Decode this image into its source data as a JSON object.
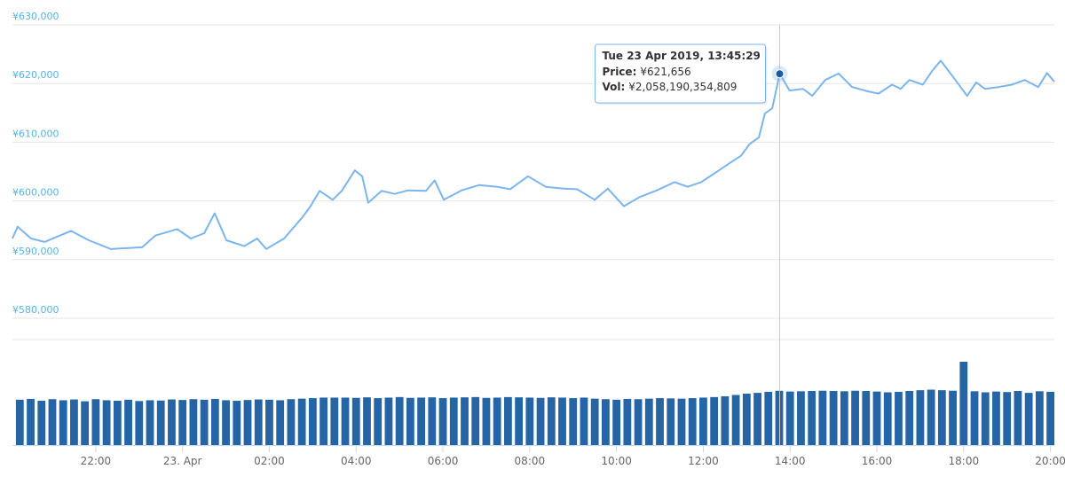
{
  "chart_data": {
    "type": "line",
    "xlim": [
      20.08,
      44.09
    ],
    "xticks": [
      {
        "value": 22,
        "label": "22:00"
      },
      {
        "value": 24,
        "label": "23. Apr"
      },
      {
        "value": 26,
        "label": "02:00"
      },
      {
        "value": 28,
        "label": "04:00"
      },
      {
        "value": 30,
        "label": "06:00"
      },
      {
        "value": 32,
        "label": "08:00"
      },
      {
        "value": 34,
        "label": "10:00"
      },
      {
        "value": 36,
        "label": "12:00"
      },
      {
        "value": 38,
        "label": "14:00"
      },
      {
        "value": 40,
        "label": "16:00"
      },
      {
        "value": 42,
        "label": "18:00"
      },
      {
        "value": 44,
        "label": "20:00"
      }
    ],
    "ylim": [
      580000,
      630000
    ],
    "yticks": [
      {
        "value": 580000,
        "label": "¥580,000"
      },
      {
        "value": 590000,
        "label": "¥590,000"
      },
      {
        "value": 600000,
        "label": "¥600,000"
      },
      {
        "value": 610000,
        "label": "¥610,000"
      },
      {
        "value": 620000,
        "label": "¥620,000"
      },
      {
        "value": 630000,
        "label": "¥630,000"
      }
    ],
    "grid": true,
    "price": {
      "color": "#7cb5ec",
      "x": [
        20.08,
        20.2,
        20.51,
        20.82,
        21.43,
        21.84,
        22.35,
        23.07,
        23.37,
        23.88,
        24.19,
        24.5,
        24.74,
        25.01,
        25.42,
        25.72,
        25.93,
        26.34,
        26.75,
        26.95,
        27.16,
        27.46,
        27.67,
        27.97,
        28.14,
        28.28,
        28.59,
        28.89,
        29.2,
        29.61,
        29.81,
        30.02,
        30.43,
        30.84,
        31.25,
        31.55,
        31.96,
        32.37,
        32.78,
        33.09,
        33.5,
        33.8,
        34.17,
        34.52,
        34.93,
        35.34,
        35.64,
        35.95,
        36.26,
        36.56,
        36.87,
        37.07,
        37.28,
        37.42,
        37.59,
        37.76,
        37.99,
        38.3,
        38.51,
        38.81,
        39.12,
        39.43,
        39.83,
        40.04,
        40.35,
        40.55,
        40.75,
        41.06,
        41.27,
        41.47,
        41.78,
        42.08,
        42.29,
        42.49,
        42.8,
        43.11,
        43.41,
        43.72,
        43.92,
        44.09
      ],
      "values": [
        593600,
        595600,
        593600,
        593000,
        594900,
        593300,
        591800,
        592100,
        594100,
        595200,
        593600,
        594500,
        597900,
        593300,
        592300,
        593600,
        591800,
        593600,
        597100,
        599100,
        601700,
        600200,
        601700,
        605200,
        604200,
        599700,
        601700,
        601200,
        601800,
        601700,
        603500,
        600200,
        601800,
        602700,
        602400,
        602000,
        604200,
        602400,
        602100,
        602000,
        600200,
        602100,
        599100,
        600600,
        601800,
        603200,
        602400,
        603200,
        604700,
        606200,
        607700,
        609700,
        610800,
        614900,
        615800,
        621656,
        618800,
        619100,
        617900,
        620600,
        621700,
        619400,
        618600,
        618300,
        619800,
        619100,
        620600,
        619800,
        622100,
        623900,
        620900,
        617900,
        620200,
        619100,
        619400,
        619800,
        620600,
        619400,
        621800,
        620300
      ]
    },
    "volume": {
      "type": "bar",
      "color": "#2565a6",
      "ylim": [
        0,
        4000000000000.0
      ],
      "x": [
        20.25,
        20.5,
        20.75,
        21,
        21.25,
        21.5,
        21.75,
        22,
        22.25,
        22.5,
        22.75,
        23,
        23.25,
        23.5,
        23.75,
        24,
        24.25,
        24.5,
        24.75,
        25,
        25.25,
        25.5,
        25.75,
        26,
        26.25,
        26.5,
        26.75,
        27,
        27.25,
        27.5,
        27.75,
        28,
        28.25,
        28.5,
        28.75,
        29,
        29.25,
        29.5,
        29.75,
        30,
        30.25,
        30.5,
        30.75,
        31,
        31.25,
        31.5,
        31.75,
        32,
        32.25,
        32.5,
        32.75,
        33,
        33.25,
        33.5,
        33.75,
        34,
        34.25,
        34.5,
        34.75,
        35,
        35.25,
        35.5,
        35.75,
        36,
        36.25,
        36.5,
        36.75,
        37,
        37.25,
        37.5,
        37.75,
        38,
        38.25,
        38.5,
        38.75,
        39,
        39.25,
        39.5,
        39.75,
        40,
        40.25,
        40.5,
        40.75,
        41,
        41.25,
        41.5,
        41.75,
        42,
        42.25,
        42.5,
        42.75,
        43,
        43.25,
        43.5,
        43.75,
        44
      ],
      "values": [
        1720000000000.0,
        1750000000000.0,
        1680000000000.0,
        1740000000000.0,
        1700000000000.0,
        1730000000000.0,
        1660000000000.0,
        1740000000000.0,
        1700000000000.0,
        1680000000000.0,
        1720000000000.0,
        1670000000000.0,
        1700000000000.0,
        1690000000000.0,
        1730000000000.0,
        1710000000000.0,
        1740000000000.0,
        1720000000000.0,
        1750000000000.0,
        1700000000000.0,
        1680000000000.0,
        1710000000000.0,
        1730000000000.0,
        1720000000000.0,
        1700000000000.0,
        1740000000000.0,
        1760000000000.0,
        1780000000000.0,
        1800000000000.0,
        1800000000000.0,
        1800000000000.0,
        1790000000000.0,
        1810000000000.0,
        1780000000000.0,
        1800000000000.0,
        1820000000000.0,
        1790000000000.0,
        1800000000000.0,
        1810000000000.0,
        1780000000000.0,
        1800000000000.0,
        1810000000000.0,
        1820000000000.0,
        1790000000000.0,
        1800000000000.0,
        1820000000000.0,
        1810000000000.0,
        1800000000000.0,
        1790000000000.0,
        1810000000000.0,
        1800000000000.0,
        1780000000000.0,
        1800000000000.0,
        1760000000000.0,
        1740000000000.0,
        1720000000000.0,
        1750000000000.0,
        1740000000000.0,
        1760000000000.0,
        1780000000000.0,
        1770000000000.0,
        1760000000000.0,
        1780000000000.0,
        1800000000000.0,
        1820000000000.0,
        1850000000000.0,
        1900000000000.0,
        1950000000000.0,
        1980000000000.0,
        2020000000000.0,
        2058190354809.0,
        2030000000000.0,
        2040000000000.0,
        2050000000000.0,
        2060000000000.0,
        2050000000000.0,
        2040000000000.0,
        2060000000000.0,
        2050000000000.0,
        2030000000000.0,
        2000000000000.0,
        2020000000000.0,
        2050000000000.0,
        2080000000000.0,
        2100000000000.0,
        2080000000000.0,
        2060000000000.0,
        3160000000000.0,
        2040000000000.0,
        2000000000000.0,
        2030000000000.0,
        2010000000000.0,
        2050000000000.0,
        1980000000000.0,
        2040000000000.0,
        2020000000000.0
      ]
    },
    "tooltip": {
      "x": 37.76,
      "title": "Tue 23 Apr 2019, 13:45:29",
      "rows": [
        {
          "label": "Price:",
          "value": "¥621,656"
        },
        {
          "label": "Vol:",
          "value": "¥2,058,190,354,809"
        }
      ]
    }
  }
}
